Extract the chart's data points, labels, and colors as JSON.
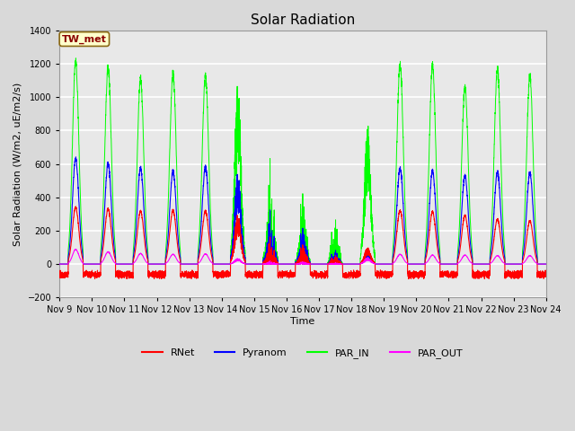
{
  "title": "Solar Radiation",
  "ylabel": "Solar Radiation (W/m2, uE/m2/s)",
  "xlabel": "Time",
  "ylim": [
    -200,
    1400
  ],
  "yticks": [
    -200,
    0,
    200,
    400,
    600,
    800,
    1000,
    1200,
    1400
  ],
  "xlim": [
    0,
    15
  ],
  "xtick_labels": [
    "Nov 9",
    "Nov 10",
    "Nov 11",
    "Nov 12",
    "Nov 13",
    "Nov 14",
    "Nov 15",
    "Nov 16",
    "Nov 17",
    "Nov 18",
    "Nov 19",
    "Nov 20",
    "Nov 21",
    "Nov 22",
    "Nov 23",
    "Nov 24"
  ],
  "station_label": "TW_met",
  "colors": {
    "RNet": "#ff0000",
    "Pyranom": "#0000ff",
    "PAR_IN": "#00ff00",
    "PAR_OUT": "#ff00ff"
  },
  "legend_entries": [
    "RNet",
    "Pyranom",
    "PAR_IN",
    "PAR_OUT"
  ],
  "fig_facecolor": "#d9d9d9",
  "plot_facecolor": "#e8e8e8",
  "grid_color": "#ffffff",
  "figsize": [
    6.4,
    4.8
  ],
  "dpi": 100
}
